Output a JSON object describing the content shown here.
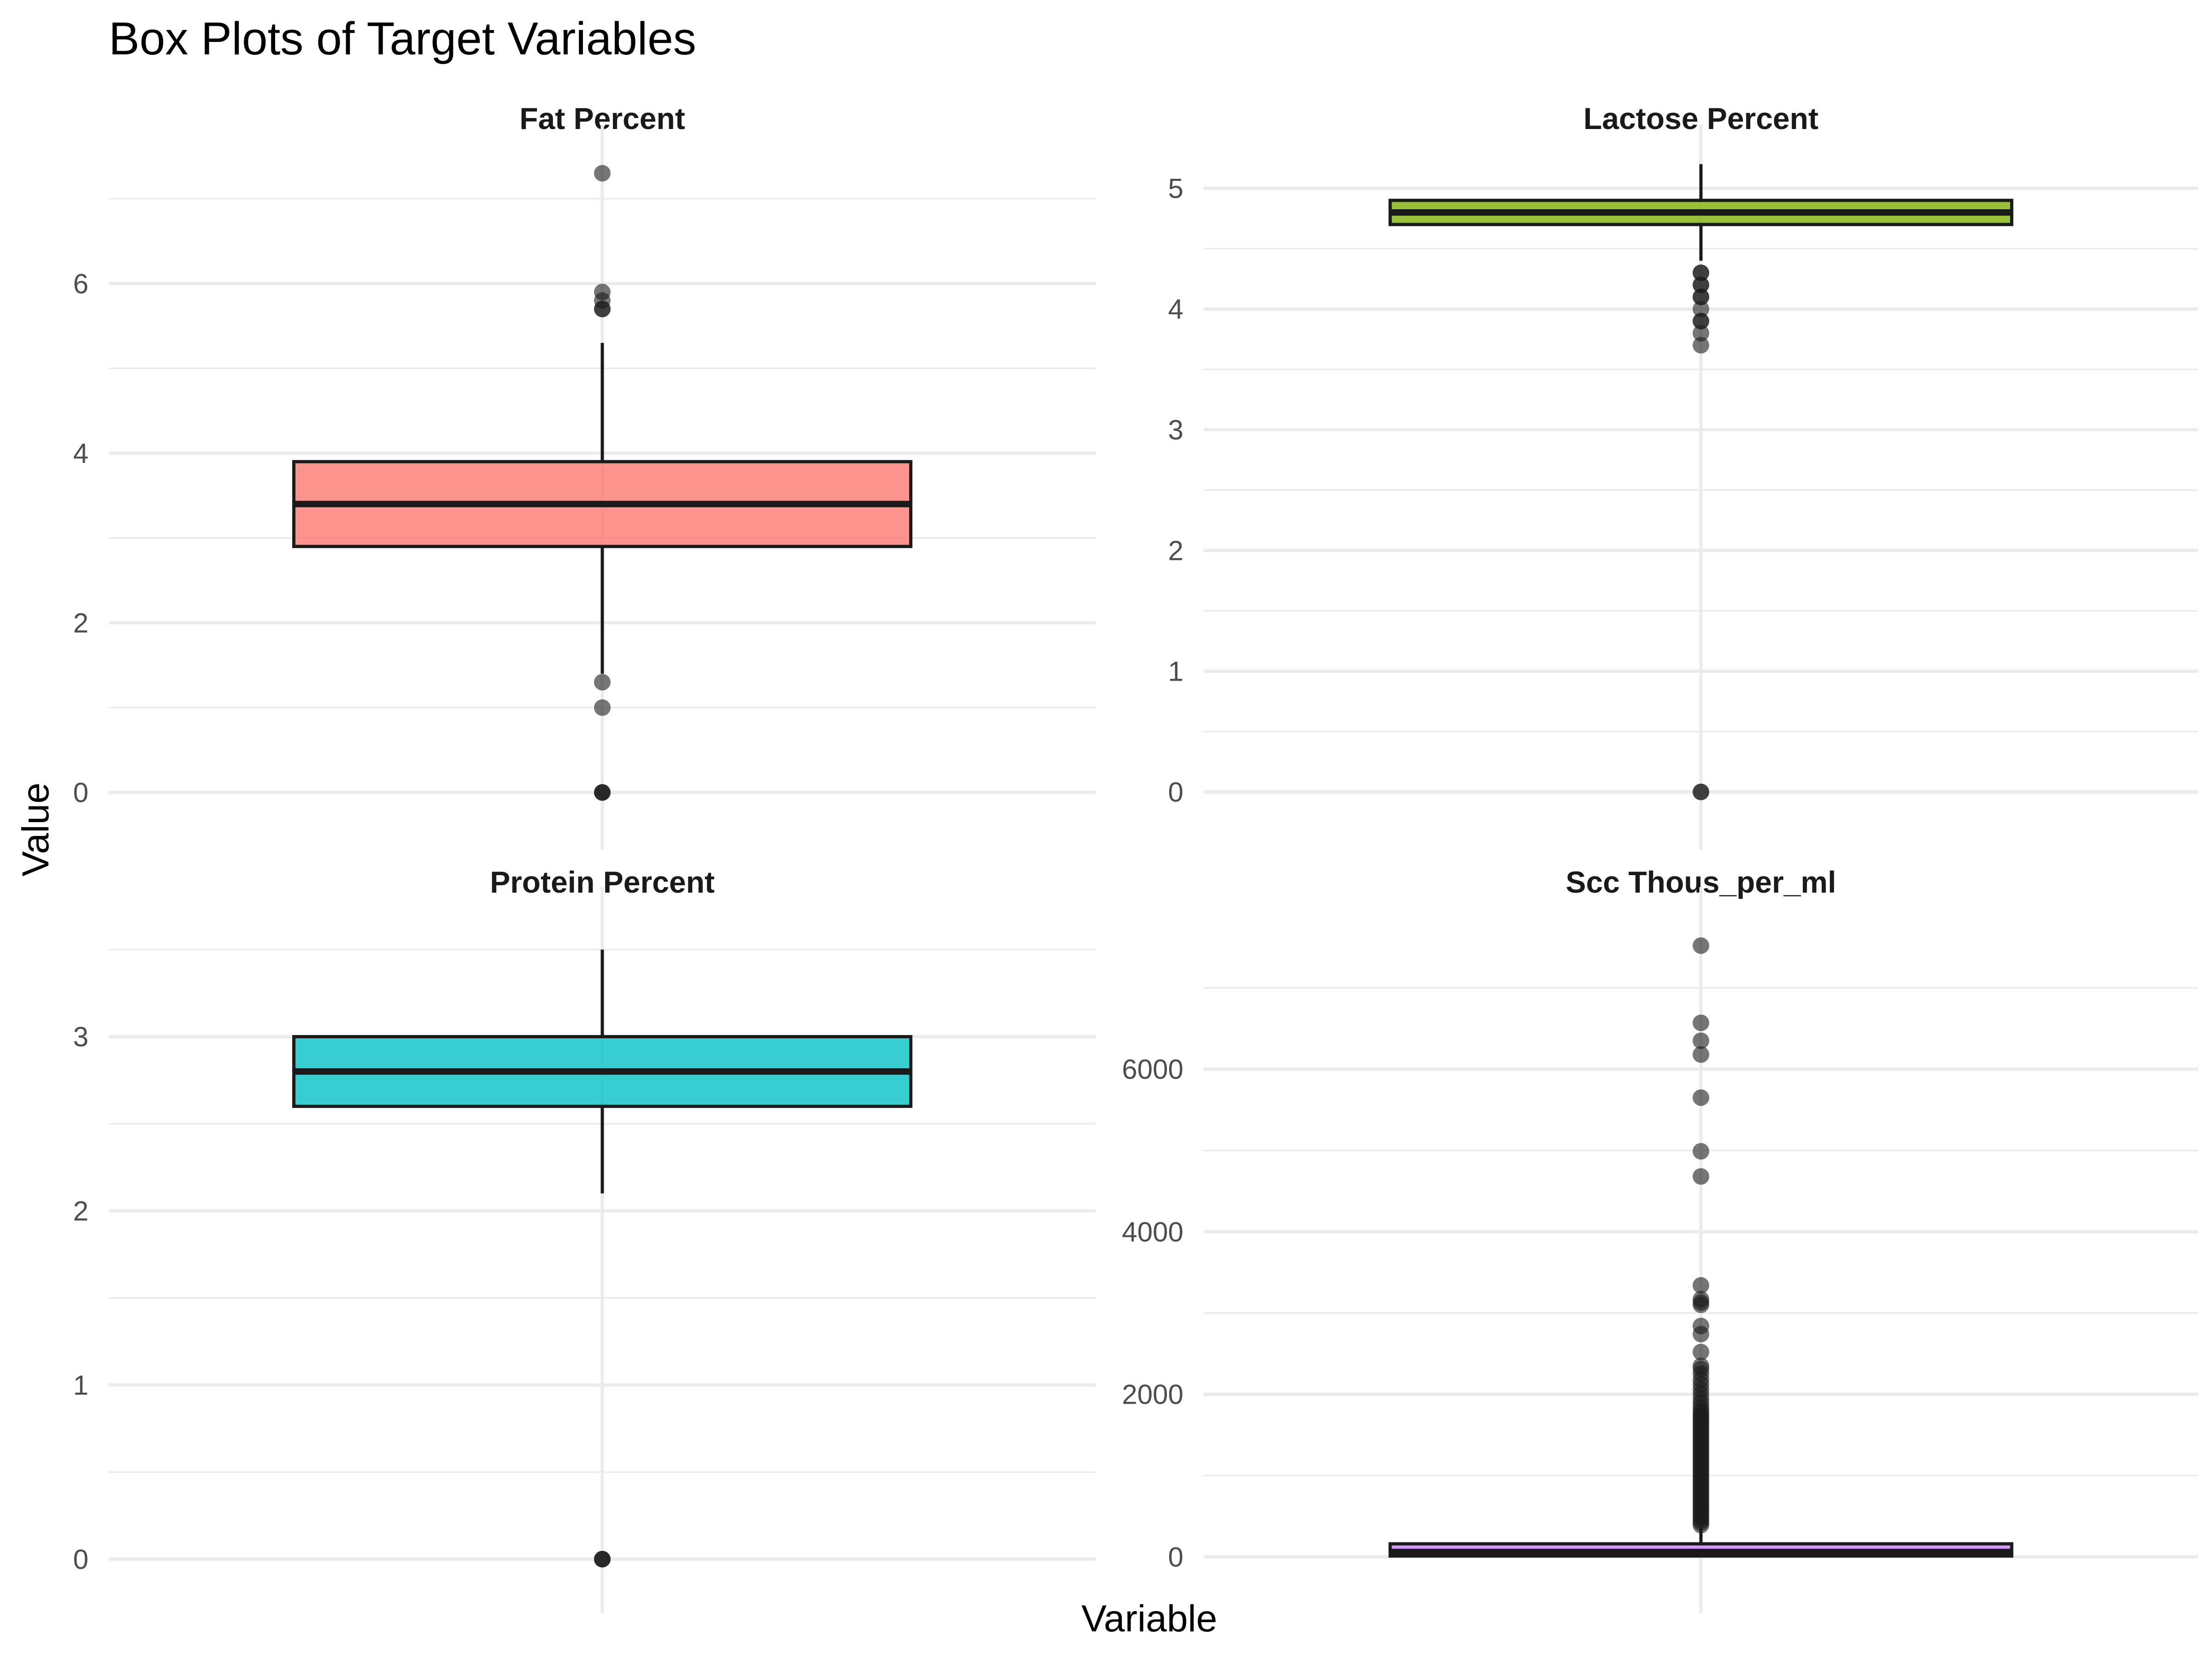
{
  "chart_data": {
    "type": "boxplot",
    "title": "Box Plots of Target Variables",
    "xlabel": "Variable",
    "ylabel": "Value",
    "grid": true,
    "legend": "none",
    "panels": [
      {
        "name": "Fat Percent",
        "color": "#F8766D",
        "ylim": [
          -0.35,
          7.55
        ],
        "ticks": [
          0,
          2,
          4,
          6
        ],
        "minor_ticks": [
          1,
          3,
          5,
          7
        ],
        "box": {
          "q1": 2.9,
          "median": 3.4,
          "q3": 3.9,
          "whisker_low": 1.4,
          "whisker_high": 5.3
        },
        "outliers": [
          7.3,
          5.9,
          5.8,
          5.7,
          5.7,
          1.3,
          1.0,
          0.0,
          0.0,
          0.0
        ]
      },
      {
        "name": "Lactose Percent",
        "color": "#7CAE00",
        "ylim": [
          -0.25,
          5.3
        ],
        "ticks": [
          0,
          1,
          2,
          3,
          4,
          5
        ],
        "minor_ticks": [
          0.5,
          1.5,
          2.5,
          3.5,
          4.5
        ],
        "box": {
          "q1": 4.7,
          "median": 4.8,
          "q3": 4.9,
          "whisker_low": 4.4,
          "whisker_high": 5.2
        },
        "outliers": [
          4.3,
          4.3,
          4.2,
          4.2,
          4.1,
          4.1,
          4.0,
          3.9,
          3.9,
          3.8,
          3.7,
          0.0,
          0.0
        ]
      },
      {
        "name": "Protein Percent",
        "color": "#00BFC4",
        "ylim": [
          -0.15,
          3.7
        ],
        "ticks": [
          0,
          1,
          2,
          3
        ],
        "minor_ticks": [
          0.5,
          1.5,
          2.5,
          3.5
        ],
        "box": {
          "q1": 2.6,
          "median": 2.8,
          "q3": 3.0,
          "whisker_low": 2.1,
          "whisker_high": 3.5
        },
        "outliers": [
          0.0,
          0.0,
          0.0
        ]
      },
      {
        "name": "Scc Thous_per_ml",
        "color": "#C77CFF",
        "ylim": [
          -350,
          7900
        ],
        "ticks": [
          0,
          2000,
          4000,
          6000
        ],
        "minor_ticks": [
          1000,
          3000,
          5000,
          7000
        ],
        "box": {
          "q1": 10,
          "median": 60,
          "q3": 160,
          "whisker_low": 0,
          "whisker_high": 360
        },
        "outliers": [
          7520,
          6570,
          6350,
          6180,
          5650,
          4990,
          4680,
          3340,
          3170,
          3130,
          3100,
          2840,
          2740,
          2520,
          2350,
          2310,
          2250,
          2180,
          2120,
          2060,
          2000,
          1940,
          1890,
          1840,
          1800,
          1770,
          1740,
          1710,
          1680,
          1650,
          1620,
          1590,
          1560,
          1530,
          1500,
          1470,
          1440,
          1410,
          1380,
          1350,
          1320,
          1290,
          1260,
          1230,
          1200,
          1170,
          1140,
          1110,
          1080,
          1050,
          1020,
          990,
          960,
          930,
          900,
          870,
          840,
          810,
          780,
          750,
          720,
          690,
          660,
          630,
          600,
          570,
          540,
          510,
          480,
          450,
          420,
          390
        ]
      }
    ]
  }
}
